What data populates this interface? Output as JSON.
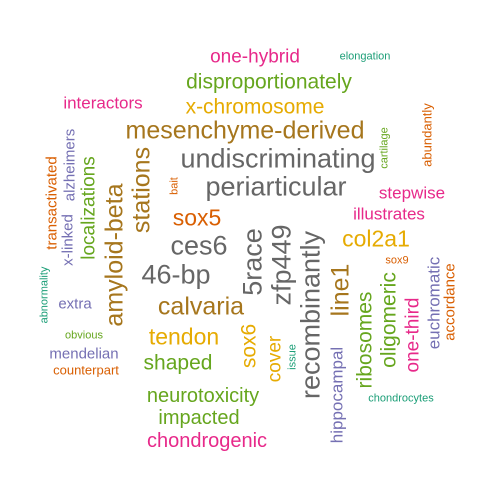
{
  "palette": {
    "green": "#66A61E",
    "orange": "#D95F02",
    "purple": "#7570B3",
    "pink": "#E7298A",
    "teal": "#1B9E77",
    "gold": "#E6AB02",
    "brown": "#A6761D",
    "gray": "#666666"
  },
  "words": {
    "w01": "one-hybrid",
    "w02": "elongation",
    "w03": "disproportionately",
    "w04": "interactors",
    "w05": "x-chromosome",
    "w06": "mesenchyme-derived",
    "w07": "undiscriminating",
    "w08": "periarticular",
    "w09": "stations",
    "w10": "sox5",
    "w11": "ces6",
    "w12": "46-bp",
    "w13": "calvaria",
    "w14": "tendon",
    "w15": "shaped",
    "w16": "neurotoxicity",
    "w17": "impacted",
    "w18": "chondrogenic",
    "w19": "5race",
    "w20": "zfp449",
    "w21": "recombinantly",
    "w22": "line1",
    "w23": "col2a1",
    "w24": "stepwise",
    "w25": "illustrates",
    "w26": "amyloid-beta",
    "w27": "localizations",
    "w28": "alzheimers",
    "w29": "x-linked",
    "w30": "transactivated",
    "w31": "bait",
    "w32": "cartilage",
    "w33": "abundantly",
    "w34": "sox9",
    "w35": "euchromatic",
    "w36": "accordance",
    "w37": "one-third",
    "w38": "oligomeric",
    "w39": "ribosomes",
    "w40": "hippocampal",
    "w41": "chondrocytes",
    "w42": "issue",
    "w43": "cover",
    "w44": "sox6",
    "w45": "extra",
    "w46": "abnormality",
    "w47": "obvious",
    "w48": "mendelian",
    "w49": "counterpart"
  }
}
